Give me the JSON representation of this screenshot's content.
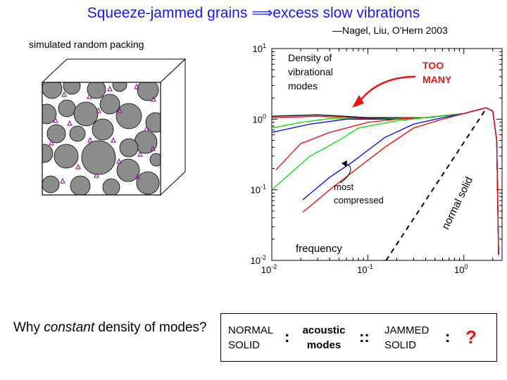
{
  "title": "Squeeze-jammed grains ⟹excess slow vibrations",
  "credit": "—Nagel, Liu, O'Hern 2003",
  "packing_label": "simulated random packing",
  "chart_data": {
    "type": "line",
    "xscale": "log",
    "yscale": "log",
    "xlim": [
      0.01,
      2.5
    ],
    "ylim": [
      0.01,
      10
    ],
    "xticks": [
      {
        "base": "10",
        "exp": "-2"
      },
      {
        "base": "10",
        "exp": "-1"
      },
      {
        "base": "10",
        "exp": "0"
      }
    ],
    "yticks": [
      {
        "base": "10",
        "exp": "1"
      },
      {
        "base": "10",
        "exp": "0"
      },
      {
        "base": "10",
        "exp": "-1"
      },
      {
        "base": "10",
        "exp": "-2"
      }
    ],
    "xlabel": "frequency",
    "ylabel": [
      "Density of",
      "vibrational",
      "modes"
    ],
    "annotations": {
      "too_many": [
        "TOO",
        "MANY"
      ],
      "most_compressed": [
        "most",
        "compressed"
      ],
      "normal_solid": "normal solid"
    },
    "series": [
      {
        "color": "#000000",
        "points": [
          [
            0.01,
            1.1
          ],
          [
            0.03,
            1.15
          ],
          [
            0.1,
            1.05
          ],
          [
            0.4,
            1.05
          ],
          [
            1.0,
            1.2
          ],
          [
            1.7,
            1.45
          ],
          [
            2.0,
            1.3
          ],
          [
            2.2,
            0.5
          ],
          [
            2.3,
            0.012
          ]
        ]
      },
      {
        "color": "#ff0000",
        "points": [
          [
            0.01,
            1.05
          ],
          [
            0.03,
            1.1
          ],
          [
            0.1,
            1.02
          ],
          [
            0.4,
            1.05
          ],
          [
            1.0,
            1.2
          ],
          [
            1.7,
            1.45
          ],
          [
            2.0,
            1.3
          ],
          [
            2.2,
            0.5
          ],
          [
            2.3,
            0.012
          ]
        ]
      },
      {
        "color": "#00dd00",
        "points": [
          [
            0.01,
            0.75
          ],
          [
            0.02,
            0.9
          ],
          [
            0.04,
            1.02
          ],
          [
            0.1,
            1.0
          ],
          [
            0.4,
            1.05
          ],
          [
            1.0,
            1.2
          ],
          [
            1.7,
            1.45
          ],
          [
            2.0,
            1.3
          ],
          [
            2.2,
            0.5
          ],
          [
            2.3,
            0.012
          ]
        ]
      },
      {
        "color": "#0000ff",
        "points": [
          [
            0.01,
            0.65
          ],
          [
            0.025,
            0.85
          ],
          [
            0.06,
            1.0
          ],
          [
            0.2,
            1.0
          ],
          [
            0.4,
            1.05
          ],
          [
            1.0,
            1.2
          ],
          [
            1.7,
            1.45
          ],
          [
            2.0,
            1.3
          ],
          [
            2.2,
            0.5
          ],
          [
            2.3,
            0.012
          ]
        ]
      },
      {
        "color": "#ff0000",
        "points": [
          [
            0.011,
            0.19
          ],
          [
            0.02,
            0.45
          ],
          [
            0.04,
            0.65
          ],
          [
            0.1,
            0.9
          ],
          [
            0.2,
            1.0
          ],
          [
            0.4,
            1.05
          ],
          [
            1.0,
            1.2
          ],
          [
            1.7,
            1.45
          ],
          [
            2.0,
            1.3
          ],
          [
            2.2,
            0.5
          ],
          [
            2.3,
            0.012
          ]
        ]
      },
      {
        "color": "#00dd00",
        "points": [
          [
            0.01,
            0.1
          ],
          [
            0.025,
            0.3
          ],
          [
            0.05,
            0.5
          ],
          [
            0.08,
            0.75
          ],
          [
            0.2,
            0.95
          ],
          [
            0.4,
            1.05
          ],
          [
            1.0,
            1.2
          ],
          [
            1.7,
            1.45
          ],
          [
            2.0,
            1.3
          ],
          [
            2.2,
            0.5
          ],
          [
            2.3,
            0.012
          ]
        ]
      },
      {
        "color": "#0000ff",
        "points": [
          [
            0.021,
            0.072
          ],
          [
            0.04,
            0.15
          ],
          [
            0.07,
            0.25
          ],
          [
            0.15,
            0.55
          ],
          [
            0.3,
            0.85
          ],
          [
            0.6,
            1.05
          ],
          [
            1.0,
            1.2
          ],
          [
            1.7,
            1.45
          ],
          [
            2.0,
            1.3
          ],
          [
            2.2,
            0.5
          ],
          [
            2.3,
            0.012
          ]
        ]
      },
      {
        "color": "#ff0000",
        "points": [
          [
            0.021,
            0.048
          ],
          [
            0.04,
            0.1
          ],
          [
            0.07,
            0.18
          ],
          [
            0.15,
            0.4
          ],
          [
            0.3,
            0.75
          ],
          [
            0.6,
            1.0
          ],
          [
            1.0,
            1.2
          ],
          [
            1.7,
            1.45
          ],
          [
            2.0,
            1.3
          ],
          [
            2.2,
            0.5
          ],
          [
            2.3,
            0.012
          ]
        ]
      },
      {
        "color": "#000000",
        "dashed": true,
        "points": [
          [
            0.155,
            0.01
          ],
          [
            1.7,
            1.4
          ]
        ]
      }
    ]
  },
  "question": {
    "before": "Why ",
    "emphasis": "constant",
    "after": " density of modes?"
  },
  "analogy": {
    "normal": [
      "NORMAL",
      "SOLID"
    ],
    "acoustic": [
      "acoustic",
      "modes"
    ],
    "jammed": [
      "JAMMED",
      "SOLID"
    ],
    "single_colon": ":",
    "double_colon": "::",
    "question_mark": "?"
  },
  "colors": {
    "title": "#1515ff",
    "annotation": "#ee1111",
    "grain_fill": "#8c8c8c",
    "contact_marker": "#a020a0"
  }
}
